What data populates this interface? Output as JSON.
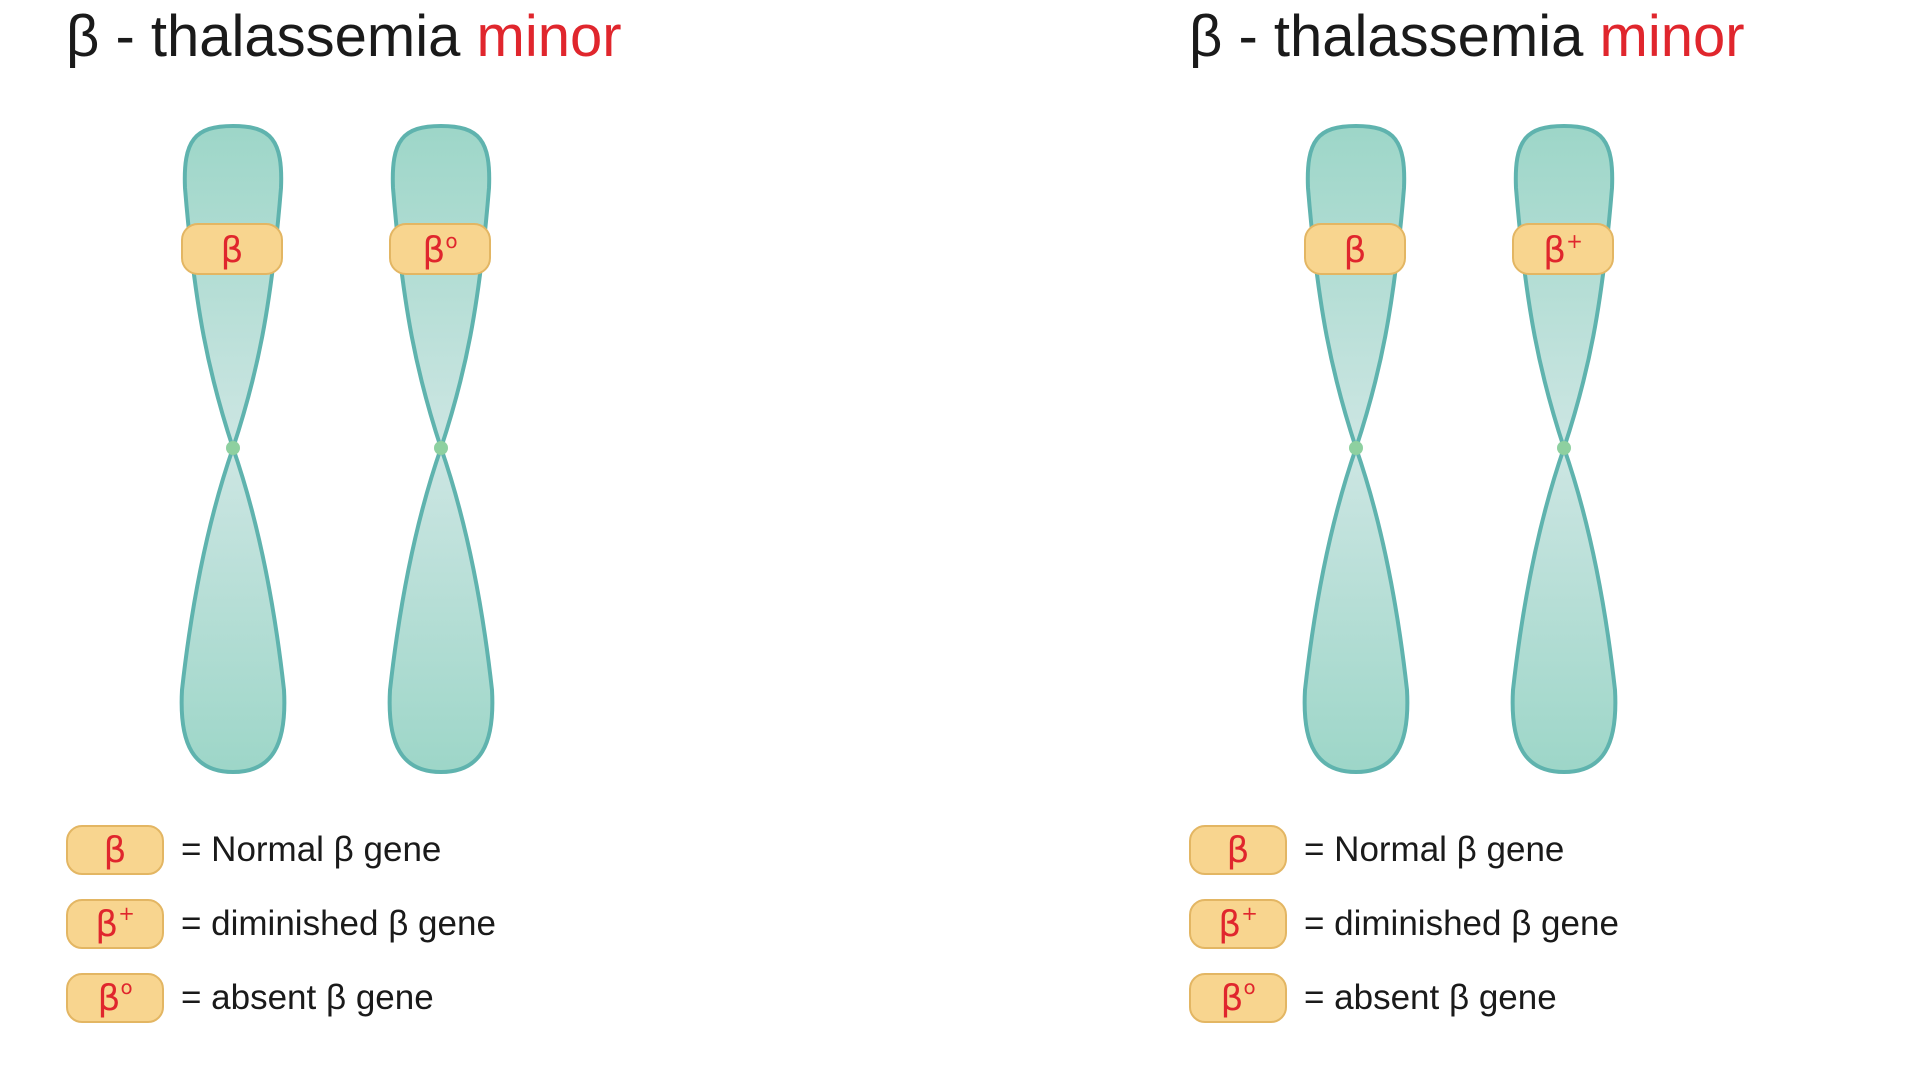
{
  "panels": [
    {
      "title": {
        "prefix": "β - thalassemia ",
        "accent": "minor"
      },
      "chromosomes": [
        {
          "gene_symbol": "β",
          "gene_mark": ""
        },
        {
          "gene_symbol": "β",
          "gene_mark": "o"
        }
      ],
      "legend": [
        {
          "badge_symbol": "β",
          "badge_mark": "",
          "text": "= Normal β gene"
        },
        {
          "badge_symbol": "β",
          "badge_mark": "+",
          "text": "= diminished β gene"
        },
        {
          "badge_symbol": "β",
          "badge_mark": "o",
          "text": "= absent β gene"
        }
      ]
    },
    {
      "title": {
        "prefix": "β - thalassemia ",
        "accent": "minor"
      },
      "chromosomes": [
        {
          "gene_symbol": "β",
          "gene_mark": ""
        },
        {
          "gene_symbol": "β",
          "gene_mark": "+"
        }
      ],
      "legend": [
        {
          "badge_symbol": "β",
          "badge_mark": "",
          "text": "= Normal β gene"
        },
        {
          "badge_symbol": "β",
          "badge_mark": "+",
          "text": "= diminished β gene"
        },
        {
          "badge_symbol": "β",
          "badge_mark": "o",
          "text": "= absent β gene"
        }
      ]
    }
  ],
  "colors": {
    "accent_red": "#e0262d",
    "chromosome_fill_dark": "#9dd6c8",
    "chromosome_fill_light": "#cde6e3",
    "chromosome_outline": "#5fb3ae",
    "centromere": "#8ed0a0",
    "gene_band_fill": "#f8d58f",
    "gene_band_border": "#e3b663"
  }
}
